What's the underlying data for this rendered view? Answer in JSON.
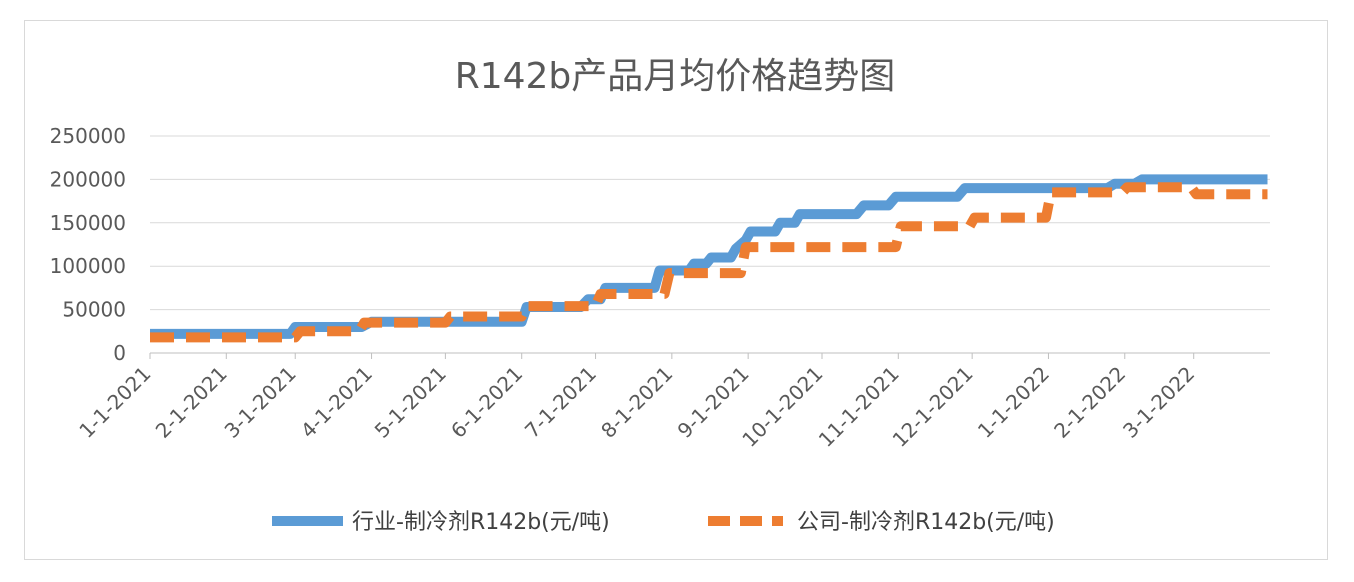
{
  "chart_data": {
    "type": "line",
    "title": "R142b产品月均价格趋势图",
    "xlabel": "",
    "ylabel": "",
    "ylim": [
      0,
      250000
    ],
    "yticks": [
      "0",
      "50000",
      "100000",
      "150000",
      "200000",
      "250000"
    ],
    "xticks": [
      "1-1-2021",
      "2-1-2021",
      "3-1-2021",
      "4-1-2021",
      "5-1-2021",
      "6-1-2021",
      "7-1-2021",
      "8-1-2021",
      "9-1-2021",
      "10-1-2021",
      "11-1-2021",
      "12-1-2021",
      "1-1-2022",
      "2-1-2022",
      "3-1-2022"
    ],
    "grid": true,
    "legend_position": "bottom",
    "series": [
      {
        "name": "行业-制冷剂R142b(元/吨)",
        "color": "#5b9bd5",
        "style": "solid",
        "points": [
          [
            "2021-01-01",
            22000
          ],
          [
            "2021-02-27",
            22000
          ],
          [
            "2021-03-01",
            30000
          ],
          [
            "2021-03-28",
            30000
          ],
          [
            "2021-04-01",
            36000
          ],
          [
            "2021-06-01",
            36000
          ],
          [
            "2021-06-03",
            53000
          ],
          [
            "2021-06-25",
            53000
          ],
          [
            "2021-06-28",
            62000
          ],
          [
            "2021-07-03",
            62000
          ],
          [
            "2021-07-05",
            75000
          ],
          [
            "2021-07-25",
            75000
          ],
          [
            "2021-07-27",
            95000
          ],
          [
            "2021-08-08",
            95000
          ],
          [
            "2021-08-10",
            103000
          ],
          [
            "2021-08-15",
            103000
          ],
          [
            "2021-08-17",
            110000
          ],
          [
            "2021-08-25",
            110000
          ],
          [
            "2021-08-27",
            120000
          ],
          [
            "2021-08-31",
            130000
          ],
          [
            "2021-09-02",
            140000
          ],
          [
            "2021-09-12",
            140000
          ],
          [
            "2021-09-14",
            150000
          ],
          [
            "2021-09-20",
            150000
          ],
          [
            "2021-09-22",
            160000
          ],
          [
            "2021-10-15",
            160000
          ],
          [
            "2021-10-18",
            170000
          ],
          [
            "2021-10-28",
            170000
          ],
          [
            "2021-10-31",
            180000
          ],
          [
            "2021-11-25",
            180000
          ],
          [
            "2021-11-28",
            190000
          ],
          [
            "2022-01-25",
            190000
          ],
          [
            "2022-01-28",
            195000
          ],
          [
            "2022-02-05",
            195000
          ],
          [
            "2022-02-08",
            200000
          ],
          [
            "2022-03-31",
            200000
          ]
        ]
      },
      {
        "name": "公司-制冷剂R142b(元/吨)",
        "color": "#ed7d31",
        "style": "dashed",
        "points": [
          [
            "2021-01-01",
            18000
          ],
          [
            "2021-03-01",
            18000
          ],
          [
            "2021-03-03",
            25000
          ],
          [
            "2021-03-27",
            25000
          ],
          [
            "2021-03-29",
            35000
          ],
          [
            "2021-05-01",
            35000
          ],
          [
            "2021-05-03",
            42000
          ],
          [
            "2021-06-01",
            42000
          ],
          [
            "2021-06-03",
            54000
          ],
          [
            "2021-07-01",
            54000
          ],
          [
            "2021-07-03",
            68000
          ],
          [
            "2021-07-29",
            68000
          ],
          [
            "2021-07-31",
            92000
          ],
          [
            "2021-08-29",
            92000
          ],
          [
            "2021-08-31",
            122000
          ],
          [
            "2021-10-31",
            122000
          ],
          [
            "2021-11-02",
            146000
          ],
          [
            "2021-11-30",
            146000
          ],
          [
            "2021-12-02",
            156000
          ],
          [
            "2021-12-31",
            156000
          ],
          [
            "2022-01-02",
            185000
          ],
          [
            "2022-01-31",
            185000
          ],
          [
            "2022-02-02",
            191000
          ],
          [
            "2022-02-28",
            191000
          ],
          [
            "2022-03-02",
            183000
          ],
          [
            "2022-03-31",
            183000
          ]
        ]
      }
    ]
  }
}
